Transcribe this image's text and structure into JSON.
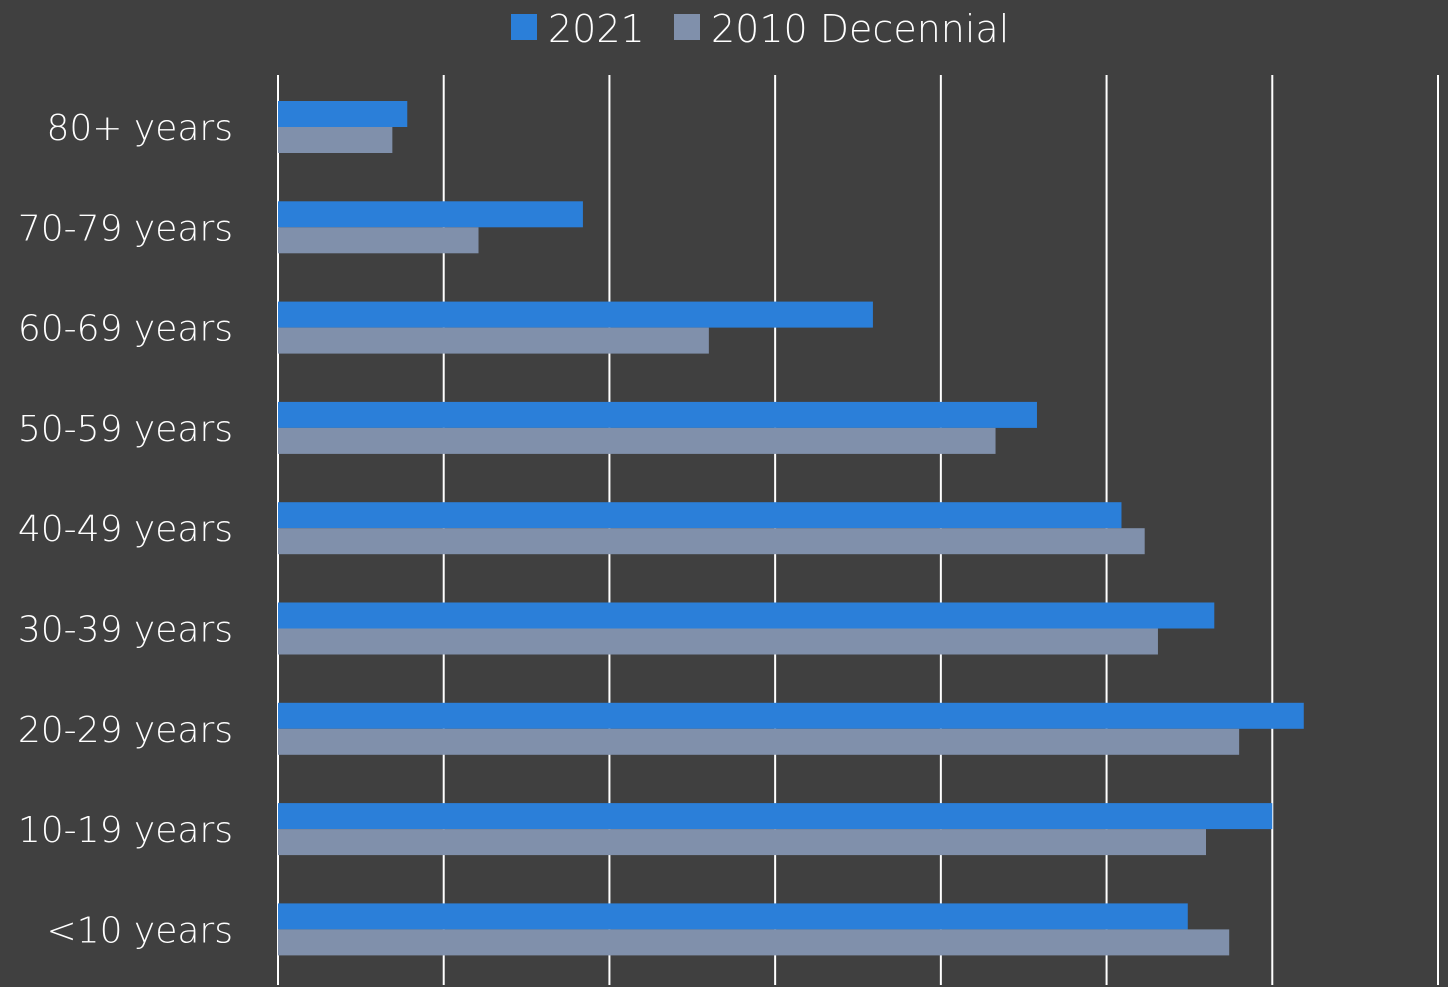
{
  "chart_data": {
    "type": "bar",
    "orientation": "horizontal",
    "categories": [
      "80+ years",
      "70-79 years",
      "60-69 years",
      "50-59 years",
      "40-49 years",
      "30-39 years",
      "20-29 years",
      "10-19 years",
      "<10 years"
    ],
    "series": [
      {
        "name": "2021",
        "color": "#2b7fd9",
        "values": [
          0.78,
          1.84,
          3.59,
          4.58,
          5.09,
          5.65,
          6.19,
          6.0,
          5.49
        ]
      },
      {
        "name": "2010 Decennial",
        "color": "#8090ab",
        "values": [
          0.69,
          1.21,
          2.6,
          4.33,
          5.23,
          5.31,
          5.8,
          5.6,
          5.74
        ]
      }
    ],
    "xlim": [
      0,
      7
    ],
    "grid": true,
    "legend_position": "top",
    "title": "",
    "xlabel": "",
    "ylabel": ""
  }
}
